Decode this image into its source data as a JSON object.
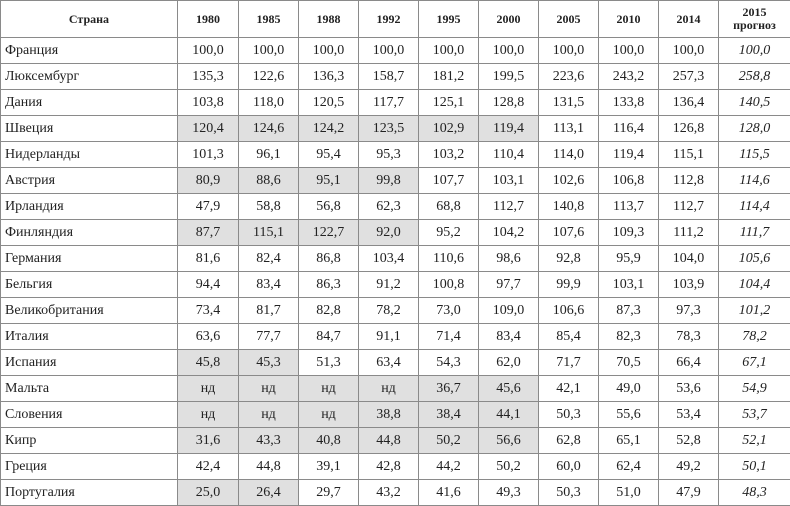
{
  "table": {
    "header": [
      "Страна",
      "1980",
      "1985",
      "1988",
      "1992",
      "1995",
      "2000",
      "2005",
      "2010",
      "2014",
      [
        "2015",
        "прогноз"
      ]
    ],
    "rows": [
      [
        "Франция",
        "100,0",
        "100,0",
        "100,0",
        "100,0",
        "100,0",
        "100,0",
        "100,0",
        "100,0",
        "100,0",
        "100,0"
      ],
      [
        "Люксембург",
        "135,3",
        "122,6",
        "136,3",
        "158,7",
        "181,2",
        "199,5",
        "223,6",
        "243,2",
        "257,3",
        "258,8"
      ],
      [
        "Дания",
        "103,8",
        "118,0",
        "120,5",
        "117,7",
        "125,1",
        "128,8",
        "131,5",
        "133,8",
        "136,4",
        "140,5"
      ],
      [
        "Швеция",
        "120,4",
        "124,6",
        "124,2",
        "123,5",
        "102,9",
        "119,4",
        "113,1",
        "116,4",
        "126,8",
        "128,0"
      ],
      [
        "Нидерланды",
        "101,3",
        "96,1",
        "95,4",
        "95,3",
        "103,2",
        "110,4",
        "114,0",
        "119,4",
        "115,1",
        "115,5"
      ],
      [
        "Австрия",
        "80,9",
        "88,6",
        "95,1",
        "99,8",
        "107,7",
        "103,1",
        "102,6",
        "106,8",
        "112,8",
        "114,6"
      ],
      [
        "Ирландия",
        "47,9",
        "58,8",
        "56,8",
        "62,3",
        "68,8",
        "112,7",
        "140,8",
        "113,7",
        "112,7",
        "114,4"
      ],
      [
        "Финляндия",
        "87,7",
        "115,1",
        "122,7",
        "92,0",
        "95,2",
        "104,2",
        "107,6",
        "109,3",
        "111,2",
        "111,7"
      ],
      [
        "Германия",
        "81,6",
        "82,4",
        "86,8",
        "103,4",
        "110,6",
        "98,6",
        "92,8",
        "95,9",
        "104,0",
        "105,6"
      ],
      [
        "Бельгия",
        "94,4",
        "83,4",
        "86,3",
        "91,2",
        "100,8",
        "97,7",
        "99,9",
        "103,1",
        "103,9",
        "104,4"
      ],
      [
        "Великобритания",
        "73,4",
        "81,7",
        "82,8",
        "78,2",
        "73,0",
        "109,0",
        "106,6",
        "87,3",
        "97,3",
        "101,2"
      ],
      [
        "Италия",
        "63,6",
        "77,7",
        "84,7",
        "91,1",
        "71,4",
        "83,4",
        "85,4",
        "82,3",
        "78,3",
        "78,2"
      ],
      [
        "Испания",
        "45,8",
        "45,3",
        "51,3",
        "63,4",
        "54,3",
        "62,0",
        "71,7",
        "70,5",
        "66,4",
        "67,1"
      ],
      [
        "Мальта",
        "нд",
        "нд",
        "нд",
        "нд",
        "36,7",
        "45,6",
        "42,1",
        "49,0",
        "53,6",
        "54,9"
      ],
      [
        "Словения",
        "нд",
        "нд",
        "нд",
        "38,8",
        "38,4",
        "44,1",
        "50,3",
        "55,6",
        "53,4",
        "53,7"
      ],
      [
        "Кипр",
        "31,6",
        "43,3",
        "40,8",
        "44,8",
        "50,2",
        "56,6",
        "62,8",
        "65,1",
        "52,8",
        "52,1"
      ],
      [
        "Греция",
        "42,4",
        "44,8",
        "39,1",
        "42,8",
        "44,2",
        "50,2",
        "60,0",
        "62,4",
        "49,2",
        "50,1"
      ],
      [
        "Португалия",
        "25,0",
        "26,4",
        "29,7",
        "43,2",
        "41,6",
        "49,3",
        "50,3",
        "51,0",
        "47,9",
        "48,3"
      ]
    ],
    "shaded": [
      [],
      [],
      [],
      [
        1,
        2,
        3,
        4,
        5,
        6
      ],
      [],
      [
        1,
        2,
        3,
        4
      ],
      [],
      [
        1,
        2,
        3,
        4
      ],
      [],
      [],
      [],
      [],
      [
        1,
        2
      ],
      [
        1,
        2,
        3,
        4,
        5,
        6
      ],
      [
        1,
        2,
        3,
        4,
        5,
        6
      ],
      [
        1,
        2,
        3,
        4,
        5,
        6
      ],
      [],
      [
        1,
        2
      ]
    ],
    "shade_color": "#e0e0e0"
  }
}
